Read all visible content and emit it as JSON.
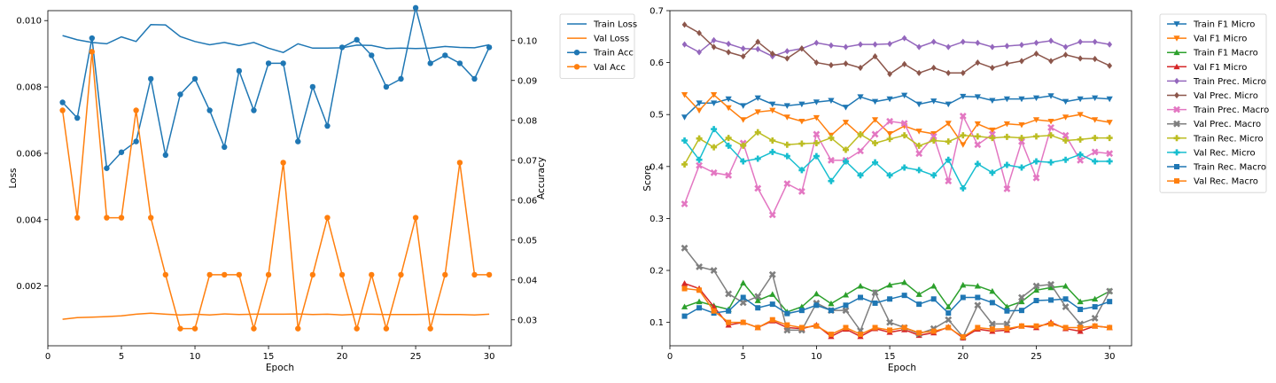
{
  "chart_data": [
    {
      "type": "line",
      "title": "",
      "xlabel": "Epoch",
      "ylabel": "Loss",
      "y2label": "Accuracy",
      "xlim": [
        0,
        31.5
      ],
      "ylim": [
        0.0002,
        0.0103
      ],
      "y2lim": [
        0.0235,
        0.1075
      ],
      "xticks": [
        0,
        5,
        10,
        15,
        20,
        25,
        30
      ],
      "yticks": [
        0.002,
        0.004,
        0.006,
        0.008,
        0.01
      ],
      "y2ticks": [
        0.03,
        0.04,
        0.05,
        0.06,
        0.07,
        0.08,
        0.09,
        0.1
      ],
      "legend_position": "outside-right",
      "x": [
        1,
        2,
        3,
        4,
        5,
        6,
        7,
        8,
        9,
        10,
        11,
        12,
        13,
        14,
        15,
        16,
        17,
        18,
        19,
        20,
        21,
        22,
        23,
        24,
        25,
        26,
        27,
        28,
        29,
        30
      ],
      "series": [
        {
          "name": "Train Loss",
          "axis": "left",
          "color": "#1f77b4",
          "marker": "none",
          "values": [
            0.00955,
            0.00942,
            0.00934,
            0.0093,
            0.00951,
            0.00937,
            0.00988,
            0.00987,
            0.00952,
            0.00937,
            0.00927,
            0.00934,
            0.00925,
            0.00934,
            0.00917,
            0.00904,
            0.0093,
            0.00917,
            0.00917,
            0.00918,
            0.00926,
            0.00925,
            0.00916,
            0.00917,
            0.00916,
            0.00917,
            0.00922,
            0.00919,
            0.00918,
            0.00927
          ]
        },
        {
          "name": "Val Loss",
          "axis": "left",
          "color": "#ff7f0e",
          "marker": "none",
          "values": [
            0.001,
            0.00105,
            0.00106,
            0.00108,
            0.0011,
            0.00115,
            0.00118,
            0.00115,
            0.00113,
            0.00115,
            0.00113,
            0.00116,
            0.00114,
            0.00115,
            0.00115,
            0.00115,
            0.00116,
            0.00114,
            0.00115,
            0.00113,
            0.00115,
            0.00115,
            0.00114,
            0.00114,
            0.00114,
            0.00115,
            0.00114,
            0.00114,
            0.00113,
            0.00115
          ]
        },
        {
          "name": "Train Acc",
          "axis": "right",
          "color": "#1f77b4",
          "marker": "circle",
          "values": [
            0.0845,
            0.0806,
            0.1006,
            0.068,
            0.072,
            0.0747,
            0.0904,
            0.0713,
            0.0865,
            0.0904,
            0.0825,
            0.0733,
            0.0924,
            0.0825,
            0.0943,
            0.0943,
            0.0747,
            0.0884,
            0.0786,
            0.0983,
            0.1002,
            0.0963,
            0.0884,
            0.0904,
            0.1082,
            0.0943,
            0.0963,
            0.0943,
            0.0904,
            0.0983
          ]
        },
        {
          "name": "Val Acc",
          "axis": "right",
          "color": "#ff7f0e",
          "marker": "circle",
          "values": [
            0.0825,
            0.0556,
            0.0972,
            0.0556,
            0.0556,
            0.0825,
            0.0556,
            0.0413,
            0.0278,
            0.0278,
            0.0413,
            0.0413,
            0.0413,
            0.0278,
            0.0413,
            0.0694,
            0.0278,
            0.0413,
            0.0556,
            0.0413,
            0.0278,
            0.0413,
            0.0278,
            0.0413,
            0.0556,
            0.0278,
            0.0413,
            0.0694,
            0.0413,
            0.0413
          ]
        }
      ]
    },
    {
      "type": "line",
      "title": "",
      "xlabel": "Epoch",
      "ylabel": "Score",
      "xlim": [
        0,
        31.5
      ],
      "ylim": [
        0.055,
        0.7
      ],
      "xticks": [
        0,
        5,
        10,
        15,
        20,
        25,
        30
      ],
      "yticks": [
        0.1,
        0.2,
        0.3,
        0.4,
        0.5,
        0.6,
        0.7
      ],
      "legend_position": "outside-right",
      "x": [
        1,
        2,
        3,
        4,
        5,
        6,
        7,
        8,
        9,
        10,
        11,
        12,
        13,
        14,
        15,
        16,
        17,
        18,
        19,
        20,
        21,
        22,
        23,
        24,
        25,
        26,
        27,
        28,
        29,
        30
      ],
      "series": [
        {
          "name": "Train F1 Micro",
          "color": "#1f77b4",
          "marker": "triangle-down",
          "values": [
            0.495,
            0.522,
            0.522,
            0.53,
            0.517,
            0.532,
            0.52,
            0.517,
            0.52,
            0.524,
            0.527,
            0.514,
            0.534,
            0.525,
            0.53,
            0.537,
            0.52,
            0.526,
            0.52,
            0.535,
            0.534,
            0.527,
            0.53,
            0.53,
            0.532,
            0.536,
            0.525,
            0.53,
            0.532,
            0.53
          ]
        },
        {
          "name": "Val F1 Micro",
          "color": "#ff7f0e",
          "marker": "triangle-down",
          "values": [
            0.538,
            0.508,
            0.538,
            0.513,
            0.49,
            0.505,
            0.508,
            0.495,
            0.487,
            0.494,
            0.46,
            0.485,
            0.46,
            0.49,
            0.463,
            0.478,
            0.468,
            0.463,
            0.483,
            0.442,
            0.482,
            0.47,
            0.482,
            0.48,
            0.49,
            0.487,
            0.495,
            0.5,
            0.49,
            0.485
          ]
        },
        {
          "name": "Train F1 Macro",
          "color": "#2ca02c",
          "marker": "triangle-up",
          "values": [
            0.13,
            0.14,
            0.132,
            0.125,
            0.176,
            0.142,
            0.154,
            0.12,
            0.13,
            0.155,
            0.136,
            0.153,
            0.17,
            0.158,
            0.172,
            0.177,
            0.154,
            0.17,
            0.13,
            0.172,
            0.17,
            0.16,
            0.13,
            0.14,
            0.162,
            0.167,
            0.17,
            0.14,
            0.145,
            0.16
          ]
        },
        {
          "name": "Val F1 Micro",
          "color": "#d62728",
          "marker": "triangle-up",
          "values": [
            0.175,
            0.165,
            0.13,
            0.095,
            0.1,
            0.09,
            0.103,
            0.09,
            0.088,
            0.095,
            0.073,
            0.087,
            0.073,
            0.088,
            0.081,
            0.086,
            0.075,
            0.08,
            0.091,
            0.07,
            0.087,
            0.083,
            0.085,
            0.093,
            0.09,
            0.1,
            0.088,
            0.083,
            0.093,
            0.09
          ]
        },
        {
          "name": "Train Prec. Micro",
          "color": "#9467bd",
          "marker": "diamond",
          "values": [
            0.635,
            0.62,
            0.643,
            0.636,
            0.627,
            0.626,
            0.612,
            0.622,
            0.627,
            0.638,
            0.633,
            0.63,
            0.635,
            0.635,
            0.636,
            0.647,
            0.63,
            0.64,
            0.63,
            0.64,
            0.638,
            0.63,
            0.632,
            0.634,
            0.638,
            0.642,
            0.63,
            0.64,
            0.64,
            0.635
          ]
        },
        {
          "name": "Val Prec. Micro",
          "color": "#8c564b",
          "marker": "diamond",
          "values": [
            0.673,
            0.657,
            0.63,
            0.62,
            0.612,
            0.64,
            0.617,
            0.608,
            0.627,
            0.6,
            0.595,
            0.598,
            0.59,
            0.612,
            0.578,
            0.597,
            0.58,
            0.59,
            0.58,
            0.58,
            0.6,
            0.59,
            0.598,
            0.603,
            0.617,
            0.603,
            0.615,
            0.608,
            0.607,
            0.594
          ]
        },
        {
          "name": "Train Prec. Macro",
          "color": "#e377c2",
          "marker": "x",
          "values": [
            0.328,
            0.402,
            0.388,
            0.383,
            0.445,
            0.358,
            0.307,
            0.367,
            0.352,
            0.462,
            0.412,
            0.412,
            0.43,
            0.462,
            0.487,
            0.483,
            0.425,
            0.458,
            0.372,
            0.497,
            0.442,
            0.462,
            0.357,
            0.448,
            0.378,
            0.475,
            0.46,
            0.412,
            0.428,
            0.425
          ]
        },
        {
          "name": "Val Prec. Macro",
          "color": "#7f7f7f",
          "marker": "x",
          "values": [
            0.243,
            0.207,
            0.2,
            0.155,
            0.138,
            0.15,
            0.192,
            0.085,
            0.085,
            0.137,
            0.123,
            0.123,
            0.084,
            0.157,
            0.1,
            0.09,
            0.078,
            0.088,
            0.105,
            0.072,
            0.133,
            0.097,
            0.097,
            0.148,
            0.17,
            0.173,
            0.13,
            0.097,
            0.108,
            0.16
          ]
        },
        {
          "name": "Train Rec. Micro",
          "color": "#bcbd22",
          "marker": "plus",
          "values": [
            0.404,
            0.454,
            0.437,
            0.455,
            0.44,
            0.466,
            0.45,
            0.442,
            0.444,
            0.445,
            0.455,
            0.432,
            0.462,
            0.445,
            0.453,
            0.46,
            0.44,
            0.45,
            0.448,
            0.46,
            0.458,
            0.455,
            0.457,
            0.455,
            0.458,
            0.46,
            0.45,
            0.452,
            0.455,
            0.455
          ]
        },
        {
          "name": "Val Rec. Micro",
          "color": "#17becf",
          "marker": "plus",
          "values": [
            0.45,
            0.413,
            0.472,
            0.44,
            0.41,
            0.415,
            0.428,
            0.42,
            0.393,
            0.42,
            0.372,
            0.41,
            0.383,
            0.408,
            0.383,
            0.398,
            0.393,
            0.383,
            0.413,
            0.358,
            0.405,
            0.388,
            0.403,
            0.398,
            0.41,
            0.408,
            0.413,
            0.423,
            0.41,
            0.41
          ]
        },
        {
          "name": "Train Rec. Macro",
          "color": "#1f77b4",
          "marker": "square",
          "values": [
            0.112,
            0.128,
            0.118,
            0.122,
            0.148,
            0.128,
            0.135,
            0.117,
            0.123,
            0.133,
            0.123,
            0.133,
            0.148,
            0.137,
            0.145,
            0.152,
            0.135,
            0.145,
            0.118,
            0.148,
            0.148,
            0.138,
            0.122,
            0.123,
            0.142,
            0.143,
            0.145,
            0.125,
            0.13,
            0.14
          ]
        },
        {
          "name": "Val Rec. Macro",
          "color": "#ff7f0e",
          "marker": "square",
          "values": [
            0.165,
            0.162,
            0.122,
            0.1,
            0.1,
            0.09,
            0.105,
            0.095,
            0.09,
            0.093,
            0.077,
            0.09,
            0.077,
            0.09,
            0.085,
            0.09,
            0.08,
            0.083,
            0.09,
            0.072,
            0.09,
            0.087,
            0.088,
            0.093,
            0.093,
            0.097,
            0.09,
            0.09,
            0.093,
            0.09
          ]
        }
      ]
    }
  ]
}
